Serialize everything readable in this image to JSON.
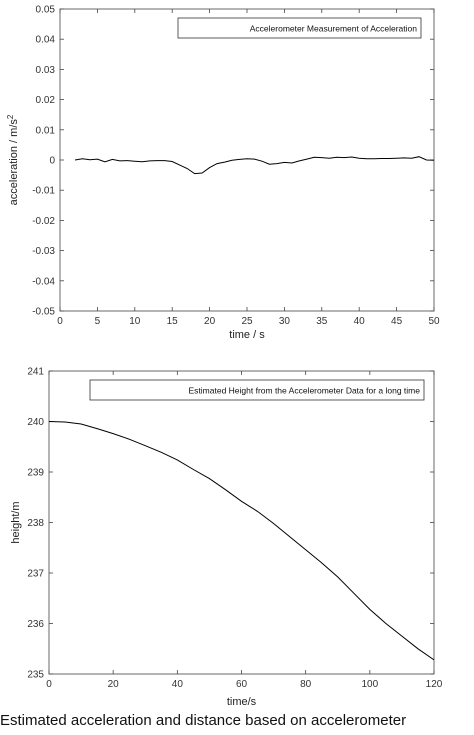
{
  "caption": "Estimated acceleration and distance based on accelerometer",
  "chart_data": [
    {
      "type": "line",
      "ylabel": "acceleration / m/s",
      "ylabel_sup": "2",
      "xlabel": "time / s",
      "xlim": [
        0,
        50
      ],
      "ylim": [
        -0.05,
        0.05
      ],
      "xticks": [
        0,
        5,
        10,
        15,
        20,
        25,
        30,
        35,
        40,
        45,
        50
      ],
      "yticks": [
        -0.05,
        -0.04,
        -0.03,
        -0.02,
        -0.01,
        0,
        0.01,
        0.02,
        0.03,
        0.04,
        0.05
      ],
      "ytick_labels": [
        "-0.05",
        "-0.04",
        "-0.03",
        "-0.02",
        "-0.01",
        "0",
        "0.01",
        "0.02",
        "0.03",
        "0.04",
        "0.05"
      ],
      "legend": "Accelerometer Measurement of Acceleration",
      "legend_position": "top-right",
      "line_color": "#000000",
      "series": [
        {
          "name": "Accelerometer Measurement of Acceleration",
          "x": [
            2,
            3,
            4,
            5,
            6,
            7,
            8,
            9,
            10,
            11,
            12,
            13,
            14,
            15,
            16,
            17,
            18,
            19,
            20,
            21,
            22,
            23,
            24,
            25,
            26,
            27,
            28,
            29,
            30,
            31,
            32,
            33,
            34,
            35,
            36,
            37,
            38,
            39,
            40,
            41,
            42,
            43,
            44,
            45,
            46,
            47,
            48,
            49,
            50
          ],
          "y": [
            0.0,
            0.0004,
            0.0001,
            0.0003,
            -0.0006,
            0.0002,
            -0.0003,
            -0.0002,
            -0.0004,
            -0.0006,
            -0.0003,
            -0.0002,
            -0.0002,
            -0.0005,
            -0.0017,
            -0.0028,
            -0.0045,
            -0.0043,
            -0.0025,
            -0.0012,
            -0.0007,
            -0.0001,
            0.0002,
            0.0004,
            0.0003,
            -0.0004,
            -0.0014,
            -0.0012,
            -0.0008,
            -0.001,
            -0.0003,
            0.0003,
            0.0009,
            0.0008,
            0.0006,
            0.0009,
            0.0008,
            0.001,
            0.0006,
            0.0004,
            0.0004,
            0.0005,
            0.0005,
            0.0006,
            0.0007,
            0.0006,
            0.0011,
            0.0,
            -0.0001
          ]
        }
      ]
    },
    {
      "type": "line",
      "ylabel": "height/m",
      "xlabel": "time/s",
      "xlim": [
        0,
        120
      ],
      "ylim": [
        235,
        241
      ],
      "xticks": [
        0,
        20,
        40,
        60,
        80,
        100,
        120
      ],
      "yticks": [
        235,
        236,
        237,
        238,
        239,
        240,
        241
      ],
      "legend": "Estimated Height from the Accelerometer Data for a long time",
      "legend_position": "top-right",
      "line_color": "#000000",
      "series": [
        {
          "name": "Estimated Height from the Accelerometer Data for a long time",
          "x": [
            0,
            5,
            10,
            15,
            20,
            25,
            30,
            35,
            40,
            45,
            50,
            55,
            60,
            65,
            70,
            75,
            80,
            85,
            90,
            95,
            100,
            105,
            110,
            115,
            120
          ],
          "y": [
            240.0,
            239.99,
            239.95,
            239.86,
            239.76,
            239.65,
            239.52,
            239.39,
            239.24,
            239.05,
            238.87,
            238.65,
            238.42,
            238.22,
            237.98,
            237.72,
            237.46,
            237.2,
            236.92,
            236.6,
            236.28,
            236.0,
            235.75,
            235.5,
            235.28
          ]
        }
      ]
    }
  ]
}
